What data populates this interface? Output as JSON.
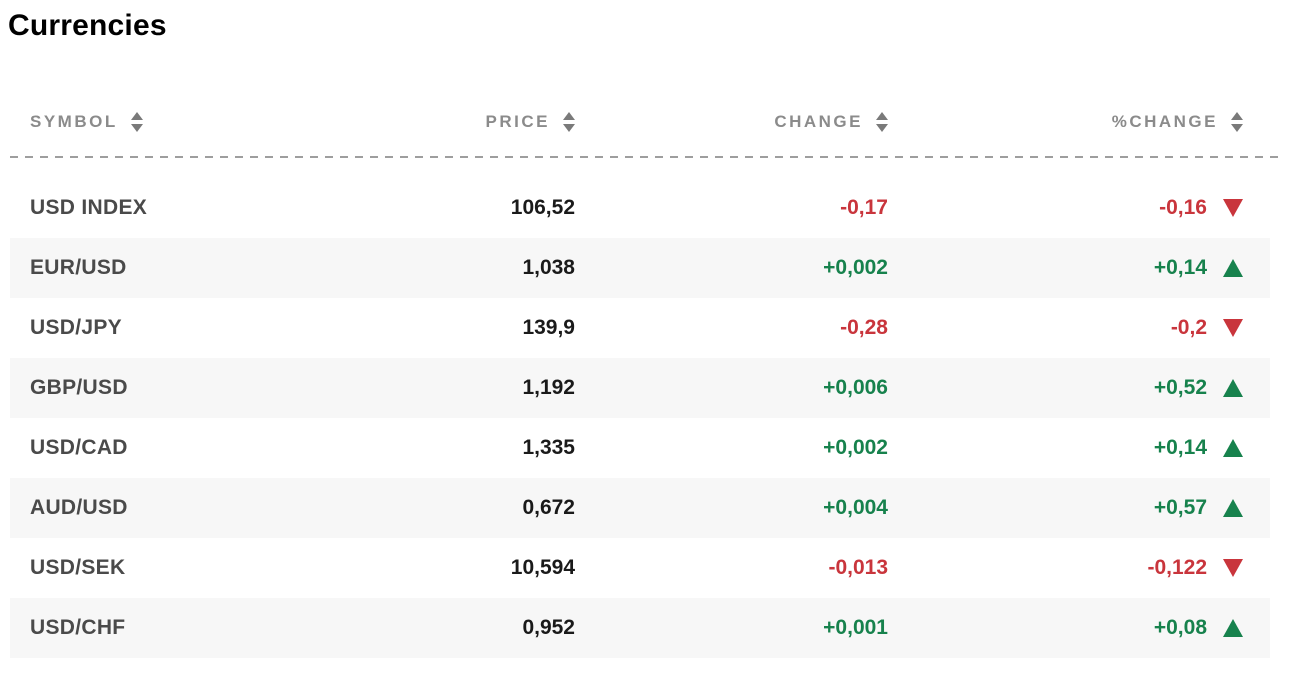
{
  "title": "Currencies",
  "table": {
    "columns": [
      {
        "label": "SYMBOL",
        "sortable": true
      },
      {
        "label": "PRICE",
        "sortable": true
      },
      {
        "label": "CHANGE",
        "sortable": true
      },
      {
        "label": "%CHANGE",
        "sortable": true
      }
    ],
    "rows": [
      {
        "symbol": "USD INDEX",
        "price": "106,52",
        "change": "-0,17",
        "pct_change": "-0,16",
        "direction": "down"
      },
      {
        "symbol": "EUR/USD",
        "price": "1,038",
        "change": "+0,002",
        "pct_change": "+0,14",
        "direction": "up"
      },
      {
        "symbol": "USD/JPY",
        "price": "139,9",
        "change": "-0,28",
        "pct_change": "-0,2",
        "direction": "down"
      },
      {
        "symbol": "GBP/USD",
        "price": "1,192",
        "change": "+0,006",
        "pct_change": "+0,52",
        "direction": "up"
      },
      {
        "symbol": "USD/CAD",
        "price": "1,335",
        "change": "+0,002",
        "pct_change": "+0,14",
        "direction": "up"
      },
      {
        "symbol": "AUD/USD",
        "price": "0,672",
        "change": "+0,004",
        "pct_change": "+0,57",
        "direction": "up"
      },
      {
        "symbol": "USD/SEK",
        "price": "10,594",
        "change": "-0,013",
        "pct_change": "-0,122",
        "direction": "down"
      },
      {
        "symbol": "USD/CHF",
        "price": "0,952",
        "change": "+0,001",
        "pct_change": "+0,08",
        "direction": "up"
      }
    ]
  },
  "colors": {
    "positive": "#17824d",
    "negative": "#c9353c",
    "row_alt_bg": "#f7f7f7",
    "header_text": "#8b8b8b"
  }
}
